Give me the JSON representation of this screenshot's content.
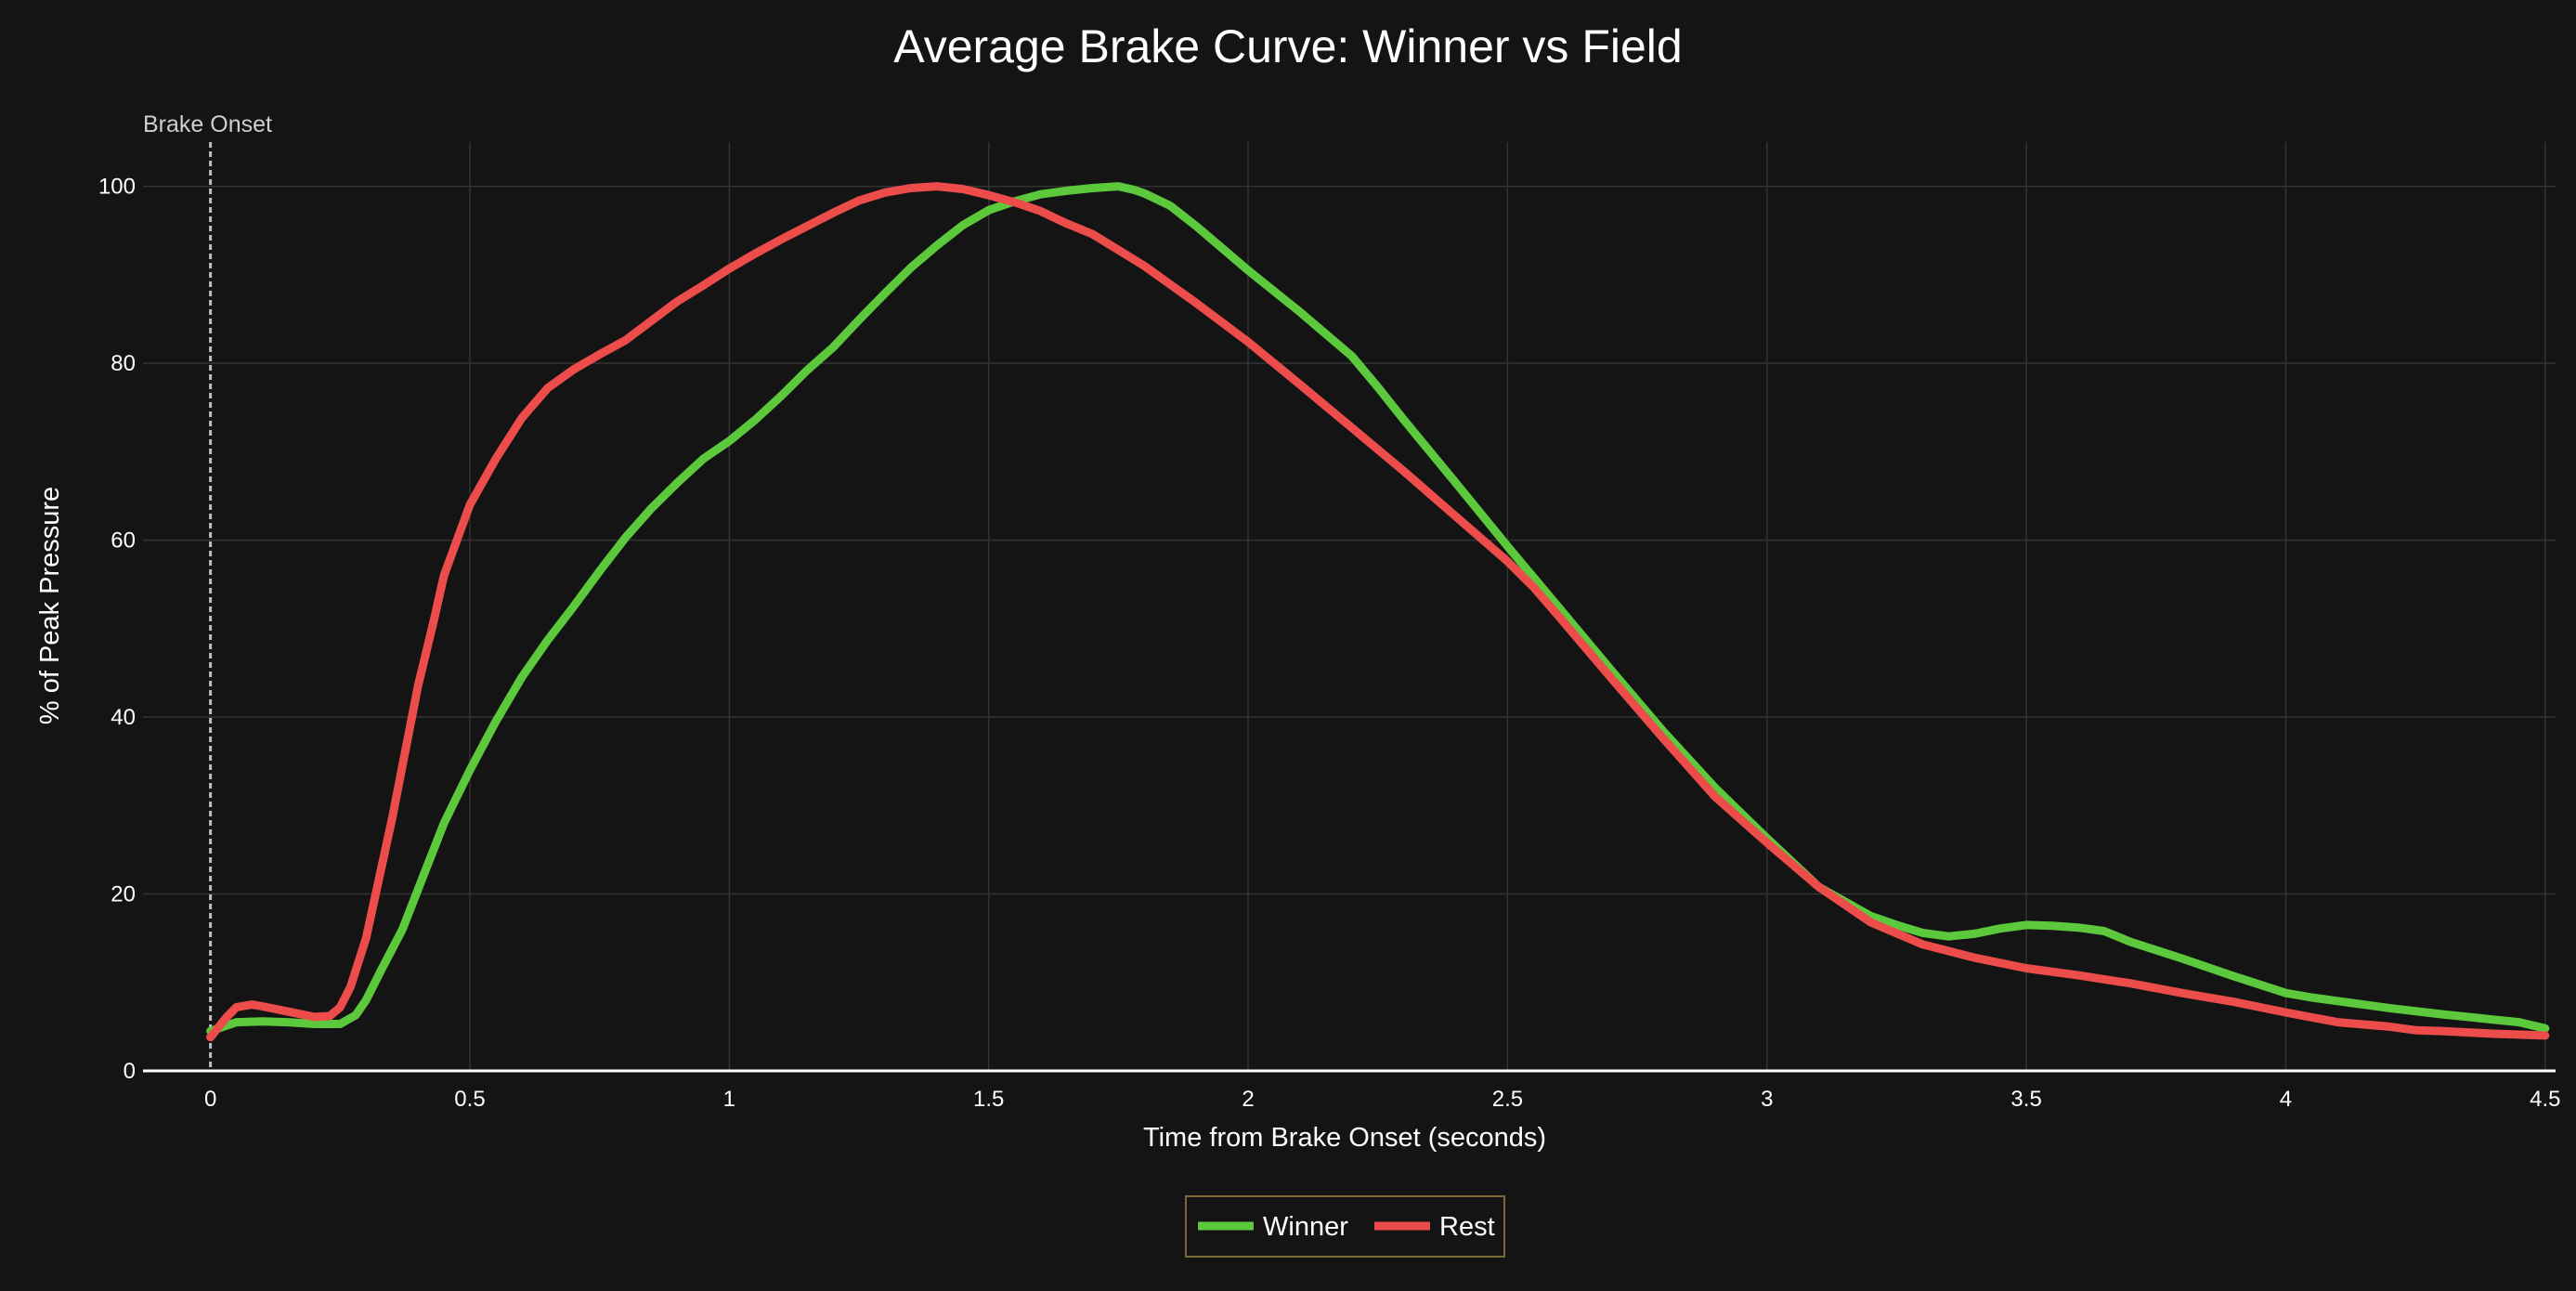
{
  "chart_data": {
    "type": "line",
    "title": "Average Brake Curve: Winner vs Field",
    "xlabel": "Time from Brake Onset (seconds)",
    "ylabel": "% of Peak Pressure",
    "xlim": [
      -0.13,
      4.52
    ],
    "ylim": [
      0,
      105
    ],
    "x_ticks": [
      0,
      0.5,
      1,
      1.5,
      2,
      2.5,
      3,
      3.5,
      4,
      4.5
    ],
    "x_tick_labels": [
      "0",
      "0.5",
      "1",
      "1.5",
      "2",
      "2.5",
      "3",
      "3.5",
      "4",
      "4.5"
    ],
    "y_ticks": [
      0,
      20,
      40,
      60,
      80,
      100
    ],
    "y_tick_labels": [
      "0",
      "20",
      "40",
      "60",
      "80",
      "100"
    ],
    "grid": true,
    "legend_position": "bottom-center",
    "annotation": {
      "x": 0,
      "text": "Brake Onset"
    },
    "colors": {
      "background": "#141414",
      "grid": "#333333",
      "legend_border": "#7a6a3a"
    },
    "series": [
      {
        "name": "Winner",
        "color": "#5cc93c",
        "x": [
          0,
          0.05,
          0.1,
          0.15,
          0.2,
          0.25,
          0.28,
          0.3,
          0.33,
          0.37,
          0.4,
          0.45,
          0.5,
          0.55,
          0.6,
          0.65,
          0.7,
          0.75,
          0.8,
          0.85,
          0.9,
          0.95,
          1.0,
          1.05,
          1.1,
          1.15,
          1.2,
          1.25,
          1.3,
          1.35,
          1.4,
          1.45,
          1.5,
          1.55,
          1.6,
          1.65,
          1.7,
          1.75,
          1.78,
          1.8,
          1.85,
          1.9,
          2.0,
          2.1,
          2.2,
          2.25,
          2.3,
          2.4,
          2.5,
          2.6,
          2.7,
          2.8,
          2.9,
          3.0,
          3.1,
          3.2,
          3.25,
          3.3,
          3.35,
          3.4,
          3.45,
          3.5,
          3.55,
          3.6,
          3.65,
          3.7,
          3.8,
          3.9,
          4.0,
          4.05,
          4.1,
          4.2,
          4.3,
          4.4,
          4.45,
          4.5
        ],
        "values": [
          4.5,
          5.5,
          5.6,
          5.5,
          5.3,
          5.3,
          6.3,
          8,
          11.5,
          16,
          20.5,
          28,
          34,
          39.5,
          44.5,
          48.7,
          52.5,
          56.5,
          60.3,
          63.6,
          66.5,
          69.2,
          71.2,
          73.6,
          76.3,
          79.2,
          81.8,
          84.9,
          87.9,
          90.8,
          93.3,
          95.6,
          97.3,
          98.3,
          99.1,
          99.5,
          99.8,
          100,
          99.6,
          99.2,
          97.8,
          95.5,
          90.5,
          85.8,
          80.8,
          77.3,
          73.6,
          66.5,
          59.3,
          52.3,
          45.3,
          38.4,
          32,
          26.3,
          20.8,
          17.5,
          16.5,
          15.6,
          15.2,
          15.5,
          16.1,
          16.5,
          16.4,
          16.2,
          15.8,
          14.6,
          12.7,
          10.7,
          8.8,
          8.3,
          7.9,
          7.1,
          6.4,
          5.8,
          5.5,
          4.8
        ]
      },
      {
        "name": "Rest",
        "color": "#ec4d4b",
        "x": [
          0,
          0.03,
          0.05,
          0.08,
          0.1,
          0.15,
          0.2,
          0.23,
          0.25,
          0.27,
          0.3,
          0.35,
          0.4,
          0.43,
          0.45,
          0.5,
          0.55,
          0.6,
          0.65,
          0.7,
          0.75,
          0.8,
          0.85,
          0.9,
          0.95,
          1.0,
          1.05,
          1.1,
          1.15,
          1.2,
          1.25,
          1.3,
          1.35,
          1.4,
          1.45,
          1.5,
          1.55,
          1.6,
          1.65,
          1.7,
          1.8,
          1.9,
          2.0,
          2.1,
          2.2,
          2.3,
          2.4,
          2.5,
          2.55,
          2.6,
          2.7,
          2.8,
          2.9,
          3.0,
          3.1,
          3.2,
          3.3,
          3.4,
          3.5,
          3.6,
          3.7,
          3.8,
          3.9,
          4.0,
          4.1,
          4.2,
          4.25,
          4.3,
          4.4,
          4.5
        ],
        "values": [
          3.8,
          6,
          7.2,
          7.5,
          7.3,
          6.7,
          6.1,
          6.2,
          7.2,
          9.5,
          15,
          28.5,
          43.5,
          50.8,
          56,
          64,
          69.2,
          73.8,
          77.2,
          79.3,
          81,
          82.6,
          84.8,
          87,
          88.8,
          90.7,
          92.4,
          94,
          95.5,
          97,
          98.4,
          99.3,
          99.8,
          100,
          99.7,
          99,
          98.2,
          97.2,
          95.8,
          94.6,
          91,
          86.8,
          82.4,
          77.6,
          72.7,
          67.8,
          62.7,
          57.6,
          54.7,
          51.3,
          44.4,
          37.6,
          31,
          25.8,
          20.8,
          16.8,
          14.3,
          12.8,
          11.6,
          10.8,
          9.9,
          8.8,
          7.8,
          6.6,
          5.5,
          5,
          4.6,
          4.5,
          4.2,
          4.0
        ]
      }
    ]
  }
}
